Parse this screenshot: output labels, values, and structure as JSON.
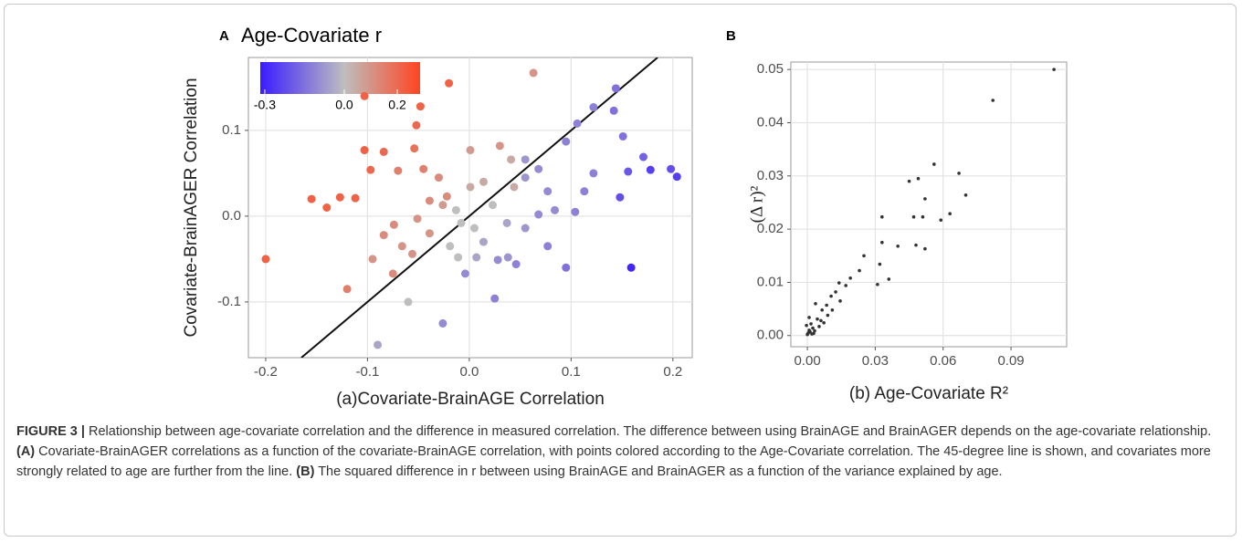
{
  "chart_data": [
    {
      "type": "scatter",
      "panel": "A",
      "title": "Age-Covariate r",
      "x_label": "(a)Covariate-BrainAGE Correlation",
      "y_label": "Covariate-BrainAGER Correlation",
      "xlim": [
        -0.217,
        0.219
      ],
      "ylim": [
        -0.165,
        0.185
      ],
      "xticks": [
        -0.2,
        -0.1,
        {
          "value": 0,
          "label": "0.0"
        },
        0.1,
        0.2
      ],
      "yticks": [
        -0.1,
        {
          "value": 0,
          "label": "0.0"
        },
        0.1
      ],
      "grid": true,
      "x": [
        -0.2,
        -0.155,
        -0.14,
        -0.127,
        -0.112,
        -0.103,
        -0.103,
        -0.097,
        -0.12,
        -0.084,
        -0.07,
        -0.054,
        -0.045,
        -0.052,
        -0.02,
        -0.048,
        -0.095,
        -0.084,
        -0.074,
        -0.066,
        -0.056,
        -0.075,
        -0.06,
        -0.09,
        -0.026,
        -0.013,
        -0.008,
        -0.019,
        0.014,
        0.03,
        0.063,
        0.044,
        0.023,
        0.037,
        0.068,
        0.077,
        0.095,
        0.106,
        0.122,
        0.144,
        0.142,
        0.151,
        0.171,
        0.178,
        0.198,
        0.204,
        0.156,
        0.148,
        0.159,
        0.095,
        0.025,
        -0.004,
        0.028,
        0.046,
        0.077,
        0.104,
        0.084,
        0.055,
        0.014,
        0.005,
        0.122,
        0.113,
        0.055,
        0.055,
        0.068,
        0.041,
        0.001,
        -0.03,
        -0.022,
        -0.039,
        -0.051,
        -0.039,
        -0.026,
        0.001,
        -0.011,
        0.007,
        0.038
      ],
      "values": [
        -0.05,
        0.02,
        0.01,
        0.022,
        0.021,
        0.14,
        0.077,
        0.054,
        -0.085,
        0.075,
        0.053,
        0.079,
        0.055,
        0.106,
        0.155,
        0.128,
        -0.05,
        -0.022,
        -0.01,
        -0.035,
        -0.044,
        -0.067,
        -0.1,
        -0.15,
        -0.125,
        0.007,
        -0.008,
        -0.035,
        0.04,
        0.082,
        0.167,
        0.034,
        0.013,
        -0.008,
        0.002,
        0.029,
        0.087,
        0.108,
        0.127,
        0.149,
        0.123,
        0.093,
        0.069,
        0.054,
        0.055,
        0.046,
        0.052,
        0.022,
        -0.06,
        -0.06,
        -0.096,
        -0.067,
        -0.051,
        -0.056,
        -0.035,
        0.005,
        0.007,
        -0.014,
        -0.03,
        -0.014,
        0.05,
        0.029,
        0.045,
        0.066,
        0.055,
        0.066,
        0.077,
        0.045,
        0.023,
        0.018,
        -0.003,
        -0.02,
        0.013,
        0.034,
        -0.048,
        -0.048,
        -0.048
      ],
      "color_values": [
        0.22,
        0.22,
        0.22,
        0.22,
        0.22,
        0.22,
        0.22,
        0.2,
        0.15,
        0.2,
        0.15,
        0.18,
        0.15,
        0.2,
        0.22,
        0.22,
        0.1,
        0.12,
        0.12,
        0.1,
        0.1,
        0.12,
        0.0,
        -0.05,
        -0.1,
        0.0,
        0.0,
        0.0,
        0.05,
        0.1,
        0.1,
        0.05,
        0.0,
        -0.05,
        -0.1,
        -0.1,
        -0.12,
        -0.12,
        -0.12,
        -0.15,
        -0.15,
        -0.15,
        -0.18,
        -0.25,
        -0.22,
        -0.25,
        -0.2,
        -0.22,
        -0.3,
        -0.15,
        -0.12,
        -0.1,
        -0.1,
        -0.12,
        -0.12,
        -0.12,
        -0.1,
        -0.08,
        -0.05,
        0.0,
        -0.12,
        -0.12,
        -0.08,
        -0.08,
        -0.1,
        0.05,
        0.08,
        0.12,
        0.12,
        0.12,
        0.1,
        0.1,
        0.08,
        0.05,
        0.0,
        -0.05,
        -0.08
      ],
      "colorbar": {
        "lim": [
          -0.317,
          0.286
        ],
        "ticks": [
          -0.3,
          {
            "value": 0,
            "label": "0.0"
          },
          0.2
        ],
        "colors": [
          "#3a1cff",
          "#bebebe",
          "#ff4521"
        ]
      }
    },
    {
      "type": "scatter",
      "panel": "B",
      "x_label": "(b) Age-Covariate R²",
      "y_label": "(Δ r)²",
      "xlim": [
        -0.0073,
        0.1146
      ],
      "ylim": [
        -0.0021,
        0.0514
      ],
      "xticks": [
        {
          "value": 0,
          "label": "0.00"
        },
        {
          "value": 0.03,
          "label": "0.03"
        },
        {
          "value": 0.06,
          "label": "0.06"
        },
        {
          "value": 0.09,
          "label": "0.09"
        }
      ],
      "yticks": [
        {
          "value": 0,
          "label": "0.00"
        },
        {
          "value": 0.01,
          "label": "0.01"
        },
        {
          "value": 0.02,
          "label": "0.02"
        },
        {
          "value": 0.03,
          "label": "0.03"
        },
        {
          "value": 0.04,
          "label": "0.04"
        },
        {
          "value": 0.05,
          "label": "0.05"
        }
      ],
      "grid": true,
      "color": "#333333",
      "x": [
        0.109,
        0.082,
        0.067,
        0.07,
        0.056,
        0.049,
        0.045,
        0.052,
        0.063,
        0.059,
        0.051,
        0.047,
        0.048,
        0.052,
        0.033,
        0.033,
        0.04,
        0.025,
        0.023,
        0.031,
        0.036,
        0.032,
        0.019,
        0.017,
        0.014,
        0.0125,
        0.0105,
        0.0085,
        0.0065,
        0.0036,
        0.0044,
        0.0016,
        0.0008,
        0.0004,
        0.0024,
        0.0,
        0.011,
        0.0145,
        0.009,
        0.0073,
        0.0052,
        0.0032,
        0.002,
        0.0008,
        -0.0004,
        0.0012,
        0.0028,
        0.006
      ],
      "values": [
        0.05,
        0.0442,
        0.0305,
        0.0264,
        0.0322,
        0.0295,
        0.029,
        0.0257,
        0.0229,
        0.0217,
        0.0223,
        0.0223,
        0.017,
        0.0163,
        0.0223,
        0.0175,
        0.0168,
        0.015,
        0.0122,
        0.0096,
        0.0106,
        0.0134,
        0.0108,
        0.0094,
        0.0099,
        0.0082,
        0.0074,
        0.0057,
        0.0048,
        0.006,
        0.0031,
        0.0022,
        0.001,
        0.0005,
        0.0014,
        0.0002,
        0.0048,
        0.0065,
        0.0038,
        0.0024,
        0.0017,
        0.0009,
        0.0003,
        0.0034,
        0.0019,
        0.0007,
        0.0004,
        0.0028
      ]
    }
  ],
  "caption": {
    "label": "FIGURE 3 |",
    "part1": " Relationship between age-covariate correlation and the difference in measured correlation. The difference between using BrainAGE and BrainAGER depends on the age-covariate relationship. ",
    "a": "(A)",
    "part2": " Covariate-BrainAGER correlations as a function of the covariate-BrainAGE correlation, with points colored according to the Age-Covariate correlation. The 45-degree line is shown, and covariates more strongly related to age are further from the line. ",
    "b": "(B)",
    "part3": " The squared difference in r between using BrainAGE and BrainAGER as a function of the variance explained by age."
  }
}
